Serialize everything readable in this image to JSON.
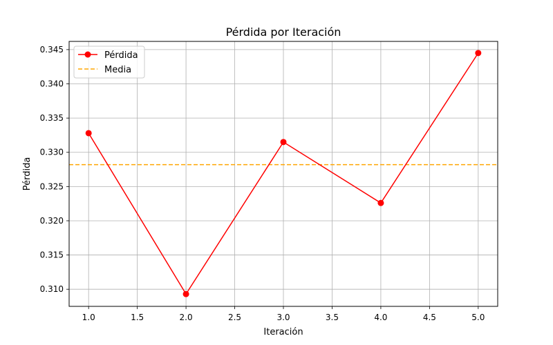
{
  "chart_data": {
    "type": "line",
    "title": "Pérdida por Iteración",
    "xlabel": "Iteración",
    "ylabel": "Pérdida",
    "x": [
      1.0,
      2.0,
      3.0,
      4.0,
      5.0
    ],
    "series": [
      {
        "name": "Pérdida",
        "values": [
          0.3328,
          0.3093,
          0.3315,
          0.3226,
          0.3445
        ],
        "color": "#ff0000",
        "marker": "circle"
      }
    ],
    "reference_lines": [
      {
        "name": "Media",
        "value": 0.3282,
        "color": "#ffa500",
        "style": "dashed"
      }
    ],
    "xlim": [
      0.8,
      5.2
    ],
    "ylim": [
      0.3075,
      0.3462
    ],
    "xticks": [
      1.0,
      1.5,
      2.0,
      2.5,
      3.0,
      3.5,
      4.0,
      4.5,
      5.0
    ],
    "xtick_labels": [
      "1.0",
      "1.5",
      "2.0",
      "2.5",
      "3.0",
      "3.5",
      "4.0",
      "4.5",
      "5.0"
    ],
    "yticks": [
      0.31,
      0.315,
      0.32,
      0.325,
      0.33,
      0.335,
      0.34,
      0.345
    ],
    "ytick_labels": [
      "0.310",
      "0.315",
      "0.320",
      "0.325",
      "0.330",
      "0.335",
      "0.340",
      "0.345"
    ],
    "grid": true,
    "legend_position": "top-left"
  }
}
